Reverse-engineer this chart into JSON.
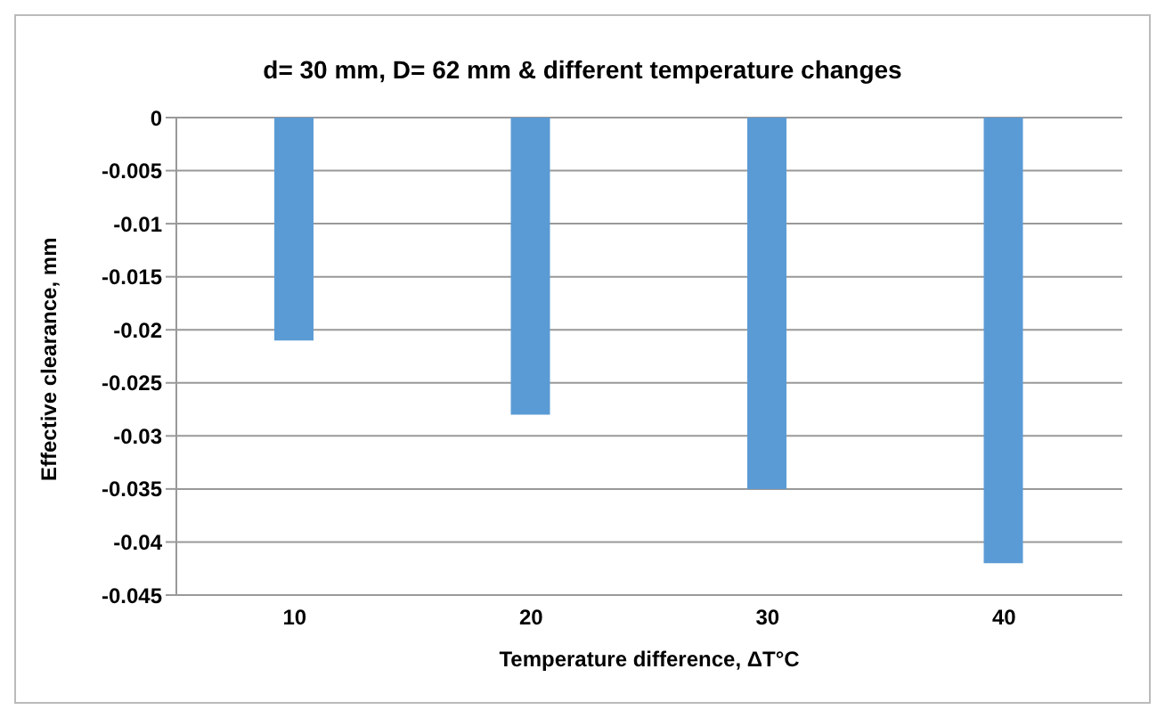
{
  "chart_data": {
    "type": "bar",
    "title": "d= 30 mm, D= 62 mm & different temperature changes",
    "xlabel": "Temperature difference, ΔT°C",
    "ylabel": "Effective clearance, mm",
    "categories": [
      "10",
      "20",
      "30",
      "40"
    ],
    "series": [
      {
        "color": "#5b9bd5",
        "values": [
          -0.021,
          -0.028,
          -0.035,
          -0.042
        ]
      }
    ],
    "ylim": [
      -0.045,
      0
    ],
    "yticks": [
      0,
      -0.005,
      -0.01,
      -0.015,
      -0.02,
      -0.025,
      -0.03,
      -0.035,
      -0.04,
      -0.045
    ],
    "grid": "y",
    "legend": false
  }
}
